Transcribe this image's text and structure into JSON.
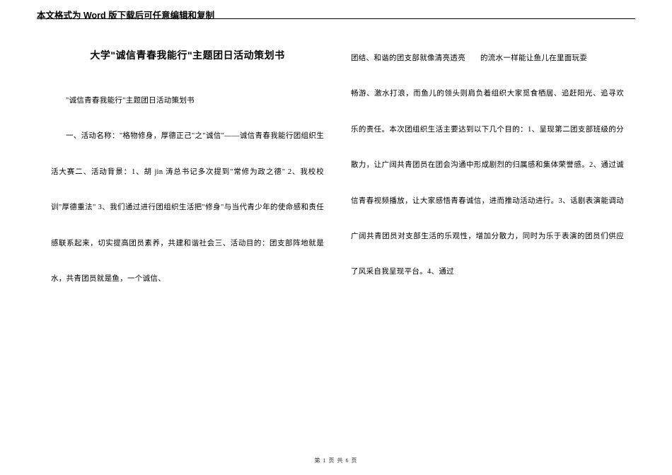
{
  "header": "本文格式为 Word 版下载后可任意编辑和复制",
  "title": "大学\"诚信青春我能行\"主题团日活动策划书",
  "col1": {
    "p1": "\"诚信青春我能行\"主题团日活动策划书",
    "p2": "一、活动名称：\"格物修身，厚德正己\"之\"诚信\"——诚信青春我能行团组织生活大赛二、活动背景：1、胡 jin 涛总书记多次提到\"常修为政之德\" 2、我校校训\"厚德重法\" 3、我们通过进行团组织生活把\"修身\"与当代青少年的使命感和责任感联系起来，切实提高团员素养，共建和谐社会三、活动目的：团支部阵地就是水，共青团员就是鱼，一个诚信、"
  },
  "col2": {
    "p1a": "团结、和谐的团支部就像清亮透亮",
    "p1b": "的流水一样能让鱼儿在里面玩耍",
    "p2": "畅游、激水打浪，而鱼儿的领头则肩负着组织大家觅食栖居、追赶阳光、追寻欢乐的责任。本次团组织生活主要达到以下几个目的：1、呈现第二团支部班级的分散力，让广阔共青团员在团会沟通中形成剧烈的归属感和集体荣誉感。2、通过诚信青春视频播放，让大家感悟青春诚信，进而推动活动进行。3、话剧表演能调动广阔共青团员对支部生活的乐观性，增加分散力，同时为乐于表演的团员们供应了风采自我呈现平台。4、通过"
  },
  "footer": "第 1 页 共 6 页"
}
